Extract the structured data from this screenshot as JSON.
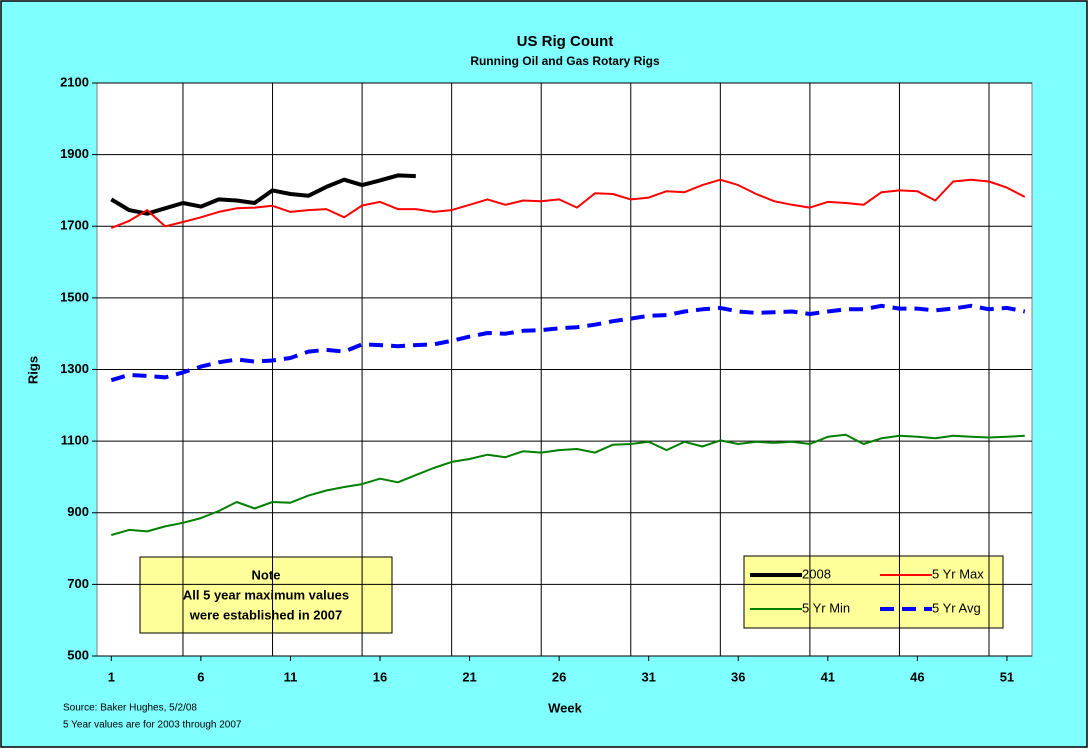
{
  "chart_data": {
    "type": "line",
    "title": "US Rig Count",
    "subtitle": "Running Oil and Gas Rotary Rigs",
    "x_label": "Week",
    "y_label": "Rigs",
    "x": [
      1,
      2,
      3,
      4,
      5,
      6,
      7,
      8,
      9,
      10,
      11,
      12,
      13,
      14,
      15,
      16,
      17,
      18,
      19,
      20,
      21,
      22,
      23,
      24,
      25,
      26,
      27,
      28,
      29,
      30,
      31,
      32,
      33,
      34,
      35,
      36,
      37,
      38,
      39,
      40,
      41,
      42,
      43,
      44,
      45,
      46,
      47,
      48,
      49,
      50,
      51,
      52
    ],
    "xlim": [
      0.2,
      52.4
    ],
    "xticks": [
      1,
      6,
      11,
      16,
      21,
      26,
      31,
      36,
      41,
      46,
      51
    ],
    "xgrid": [
      5,
      10,
      15,
      20,
      25,
      30,
      35,
      40,
      45,
      50
    ],
    "ylim": [
      500,
      2100
    ],
    "yticks": [
      500,
      700,
      900,
      1100,
      1300,
      1500,
      1700,
      1900,
      2100
    ],
    "grid": true,
    "series": [
      {
        "name": "2008",
        "color": "#000000",
        "line_style": "solid",
        "values": [
          1775,
          1745,
          1735,
          1750,
          1765,
          1755,
          1775,
          1772,
          1765,
          1800,
          1790,
          1785,
          1810,
          1830,
          1815,
          1828,
          1842,
          1840,
          null,
          null,
          null,
          null,
          null,
          null,
          null,
          null,
          null,
          null,
          null,
          null,
          null,
          null,
          null,
          null,
          null,
          null,
          null,
          null,
          null,
          null,
          null,
          null,
          null,
          null,
          null,
          null,
          null,
          null,
          null,
          null,
          null,
          null
        ]
      },
      {
        "name": "5 Yr Max",
        "color": "#ff0000",
        "line_style": "solid",
        "values": [
          1695,
          1715,
          1745,
          1700,
          1712,
          1725,
          1740,
          1750,
          1752,
          1757,
          1740,
          1745,
          1748,
          1725,
          1758,
          1768,
          1748,
          1748,
          1740,
          1745,
          1760,
          1775,
          1760,
          1772,
          1770,
          1775,
          1752,
          1792,
          1790,
          1775,
          1780,
          1798,
          1795,
          1815,
          1830,
          1815,
          1790,
          1770,
          1760,
          1752,
          1768,
          1765,
          1760,
          1795,
          1800,
          1798,
          1772,
          1825,
          1830,
          1825,
          1808,
          1782
        ]
      },
      {
        "name": "5 Yr Min",
        "color": "#008000",
        "line_style": "solid",
        "values": [
          838,
          852,
          848,
          862,
          872,
          885,
          905,
          930,
          912,
          930,
          928,
          948,
          962,
          972,
          980,
          995,
          985,
          1005,
          1025,
          1042,
          1050,
          1062,
          1055,
          1072,
          1068,
          1075,
          1078,
          1068,
          1090,
          1092,
          1098,
          1075,
          1098,
          1085,
          1102,
          1092,
          1098,
          1095,
          1098,
          1092,
          1112,
          1118,
          1092,
          1108,
          1115,
          1112,
          1108,
          1115,
          1112,
          1110,
          1112,
          1115
        ]
      },
      {
        "name": "5 Yr Avg",
        "color": "#0000ff",
        "line_style": "dashed",
        "values": [
          1270,
          1285,
          1282,
          1278,
          1292,
          1308,
          1320,
          1328,
          1322,
          1325,
          1332,
          1350,
          1355,
          1350,
          1370,
          1368,
          1365,
          1368,
          1370,
          1380,
          1392,
          1402,
          1400,
          1408,
          1410,
          1415,
          1418,
          1425,
          1435,
          1442,
          1450,
          1452,
          1462,
          1468,
          1472,
          1462,
          1458,
          1460,
          1462,
          1455,
          1462,
          1468,
          1468,
          1478,
          1470,
          1470,
          1465,
          1470,
          1478,
          1468,
          1472,
          1462
        ]
      }
    ],
    "note": [
      "Note",
      "All 5 year maximum values",
      "were established in 2007"
    ],
    "footnotes": [
      "Source:  Baker Hughes, 5/2/08",
      "5 Year values are for 2003 through 2007"
    ]
  }
}
